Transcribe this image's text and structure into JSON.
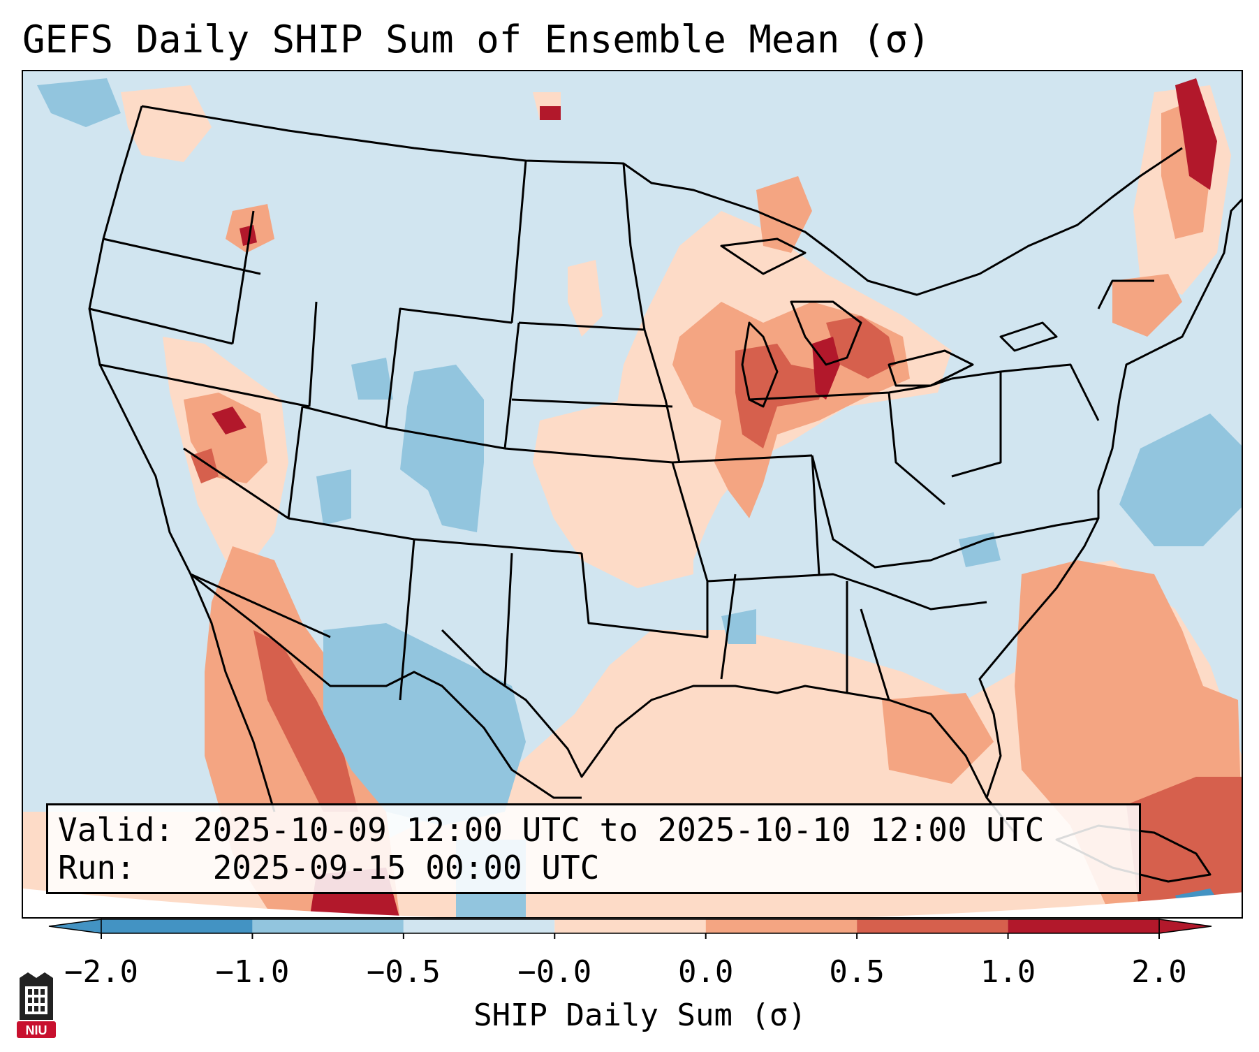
{
  "title": "GEFS Daily SHIP Sum of Ensemble Mean (σ)",
  "info": {
    "valid_label": "Valid:",
    "valid_value": "2025-10-09 12:00 UTC to 2025-10-10 12:00 UTC",
    "run_label": "Run:",
    "run_value": "2025-09-15 00:00 UTC"
  },
  "colorbar": {
    "label": "SHIP Daily Sum (σ)",
    "ticks": [
      "−2.0",
      "−1.0",
      "−0.5",
      "−0.0",
      "0.0",
      "0.5",
      "1.0",
      "2.0"
    ],
    "colors": [
      "#4393c3",
      "#92c5de",
      "#d1e5f0",
      "#fddbc7",
      "#f4a582",
      "#d6604d",
      "#b2182b"
    ],
    "background_color": "#d1e5f0"
  },
  "logo": {
    "text": "NIU",
    "color": "#c8102e"
  }
}
